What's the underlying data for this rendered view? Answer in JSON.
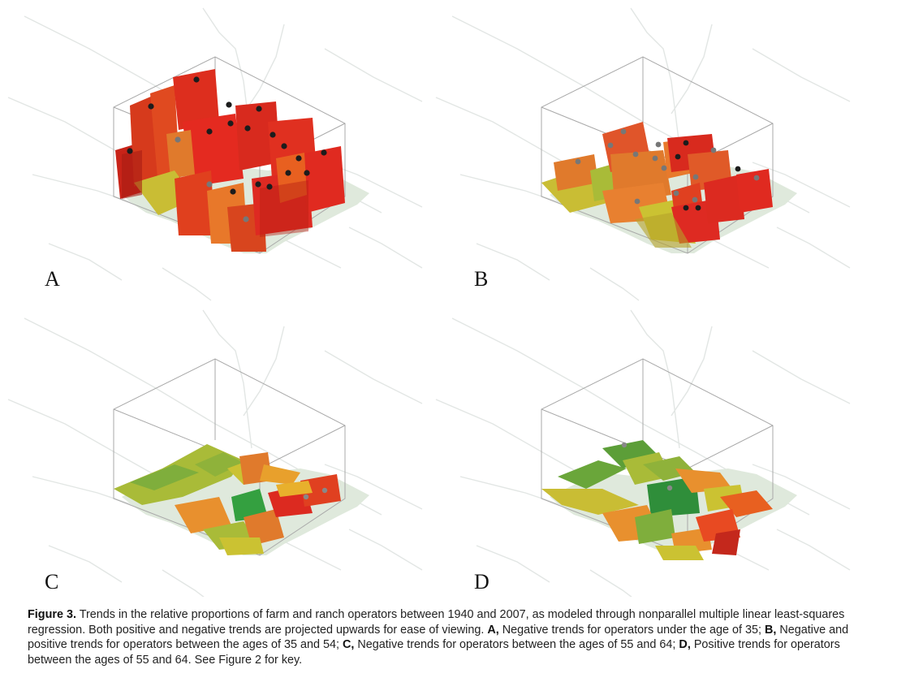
{
  "panels": [
    {
      "label": "A"
    },
    {
      "label": "B"
    },
    {
      "label": "C"
    },
    {
      "label": "D"
    }
  ],
  "caption": {
    "figure_label": "Figure 3.",
    "intro": " Trends in the relative proportions of farm and ranch operators between 1940 and 2007, as modeled through nonparallel multiple linear least-squares regression. Both positive and negative trends are projected upwards for ease of viewing. ",
    "a_label": "A,",
    "a_text": " Negative trends for operators under the age of 35; ",
    "b_label": "B,",
    "b_text": " Negative and positive trends for operators between the ages of 35 and 54; ",
    "c_label": "C,",
    "c_text": " Negative trends for operators between the ages of 55 and 64; ",
    "d_label": "D,",
    "d_text": " Positive trends for operators between the ages of 55 and 64. See Figure 2 for key."
  },
  "colors": {
    "red": "#e0281e",
    "red_orange": "#e8501e",
    "orange": "#e8782a",
    "yellow": "#cbc232",
    "yellow_green": "#a9bb38",
    "green": "#7fae3c",
    "dark_green": "#2f9a3c",
    "ground": "#dfe9dc"
  }
}
